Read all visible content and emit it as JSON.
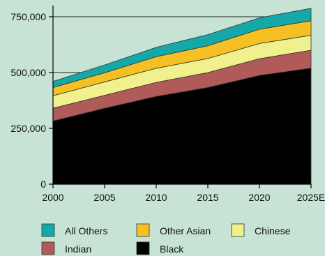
{
  "chart_data": {
    "type": "area",
    "stacked": true,
    "x": [
      "2000",
      "2005",
      "2010",
      "2015",
      "2020",
      "2025E"
    ],
    "ylim": [
      0,
      800000
    ],
    "yticks": [
      0,
      250000,
      500000,
      750000
    ],
    "ytick_labels": [
      "0",
      "250,000",
      "500,000",
      "750,000"
    ],
    "grid": "horizontal lines at y tick positions",
    "series": [
      {
        "name": "Black",
        "color": "#000000",
        "values": [
          283000,
          340000,
          393000,
          433000,
          487000,
          520000
        ]
      },
      {
        "name": "Indian",
        "color": "#b05a5a",
        "values": [
          57000,
          58000,
          63000,
          67000,
          75000,
          80000
        ]
      },
      {
        "name": "Chinese",
        "color": "#f0f08c",
        "values": [
          56000,
          60000,
          63000,
          63000,
          68000,
          67000
        ]
      },
      {
        "name": "Other Asian",
        "color": "#f5c024",
        "values": [
          37000,
          41000,
          52000,
          57000,
          64000,
          65000
        ]
      },
      {
        "name": "All Others",
        "color": "#15a8a8",
        "values": [
          27000,
          35000,
          42000,
          50000,
          51000,
          56000
        ]
      }
    ],
    "legend": {
      "placement": "bottom",
      "order": [
        "All Others",
        "Other Asian",
        "Chinese",
        "Indian",
        "Black"
      ]
    }
  }
}
